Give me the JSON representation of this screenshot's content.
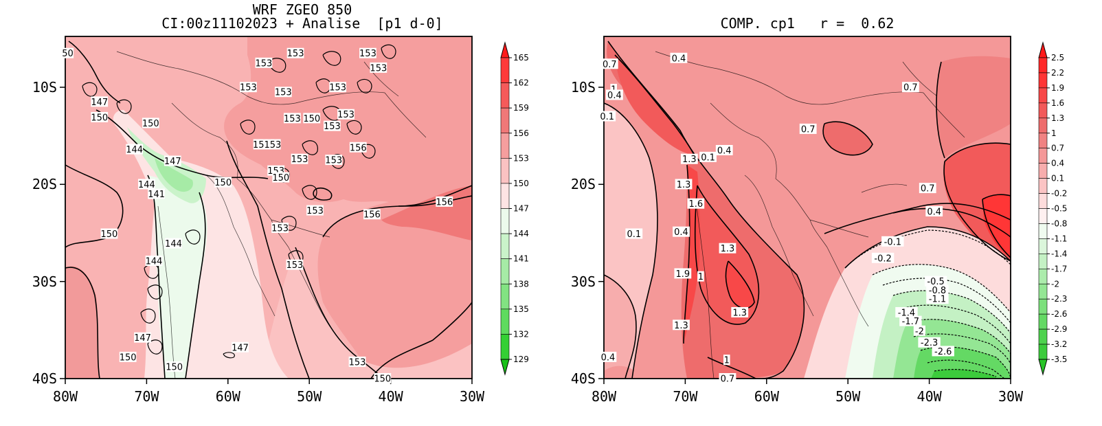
{
  "panels": [
    {
      "title_line1": "WRF ZGEO 850",
      "title_line2": "CI:00z11102023 + Analise  [p1 d-0]",
      "x_ticks": [
        "80W",
        "70W",
        "60W",
        "50W",
        "40W",
        "30W"
      ],
      "y_ticks": [
        "10S",
        "20S",
        "30S",
        "40S"
      ],
      "colorbar": {
        "levels": [
          "165",
          "162",
          "159",
          "156",
          "153",
          "150",
          "147",
          "144",
          "141",
          "138",
          "135",
          "132",
          "129"
        ],
        "colors": [
          "#ff1a1a",
          "#ff3a3a",
          "#f55a5a",
          "#f07878",
          "#f59e9e",
          "#fbc2c2",
          "#fde4e4",
          "#ecfaec",
          "#caf3ca",
          "#a6eba6",
          "#82e382",
          "#5edb5e",
          "#34d034",
          "#18c018"
        ]
      },
      "contour_labels": [
        {
          "text": "50",
          "lon": -79.7,
          "lat": -6.5
        },
        {
          "text": "153",
          "lon": -55.6,
          "lat": -7.5
        },
        {
          "text": "153",
          "lon": -51.7,
          "lat": -6.5
        },
        {
          "text": "153",
          "lon": -42.8,
          "lat": -6.5
        },
        {
          "text": "153",
          "lon": -41.5,
          "lat": -8.0
        },
        {
          "text": "153",
          "lon": -57.5,
          "lat": -10.0
        },
        {
          "text": "153",
          "lon": -53.2,
          "lat": -10.5
        },
        {
          "text": "153",
          "lon": -46.5,
          "lat": -10.0
        },
        {
          "text": "147",
          "lon": -75.8,
          "lat": -11.5
        },
        {
          "text": "150",
          "lon": -75.8,
          "lat": -13.1
        },
        {
          "text": "153",
          "lon": -52.1,
          "lat": -13.2
        },
        {
          "text": "150",
          "lon": -49.7,
          "lat": -13.2
        },
        {
          "text": "153",
          "lon": -45.5,
          "lat": -12.8
        },
        {
          "text": "150",
          "lon": -69.5,
          "lat": -13.7
        },
        {
          "text": "153",
          "lon": -47.2,
          "lat": -14.0
        },
        {
          "text": "144",
          "lon": -71.5,
          "lat": -16.4
        },
        {
          "text": "15153",
          "lon": -55.2,
          "lat": -15.9
        },
        {
          "text": "156",
          "lon": -44.0,
          "lat": -16.2
        },
        {
          "text": "147",
          "lon": -66.8,
          "lat": -17.6
        },
        {
          "text": "153",
          "lon": -51.2,
          "lat": -17.4
        },
        {
          "text": "153",
          "lon": -47.0,
          "lat": -17.5
        },
        {
          "text": "153",
          "lon": -54.1,
          "lat": -18.6
        },
        {
          "text": "150",
          "lon": -53.5,
          "lat": -19.3
        },
        {
          "text": "150",
          "lon": -60.6,
          "lat": -19.8
        },
        {
          "text": "144",
          "lon": -70.0,
          "lat": -20.0
        },
        {
          "text": "141",
          "lon": -68.8,
          "lat": -21.0
        },
        {
          "text": "156",
          "lon": -33.4,
          "lat": -21.8
        },
        {
          "text": "153",
          "lon": -49.3,
          "lat": -22.7
        },
        {
          "text": "156",
          "lon": -42.3,
          "lat": -23.1
        },
        {
          "text": "150",
          "lon": -74.6,
          "lat": -25.1
        },
        {
          "text": "153",
          "lon": -53.6,
          "lat": -24.5
        },
        {
          "text": "144",
          "lon": -66.7,
          "lat": -26.1
        },
        {
          "text": "144",
          "lon": -69.1,
          "lat": -27.9
        },
        {
          "text": "153",
          "lon": -51.8,
          "lat": -28.3
        },
        {
          "text": "147",
          "lon": -70.5,
          "lat": -35.8
        },
        {
          "text": "147",
          "lon": -58.5,
          "lat": -36.8
        },
        {
          "text": "150",
          "lon": -72.3,
          "lat": -37.8
        },
        {
          "text": "150",
          "lon": -66.6,
          "lat": -38.8
        },
        {
          "text": "153",
          "lon": -44.1,
          "lat": -38.3
        },
        {
          "text": "150",
          "lon": -41.0,
          "lat": -40.0
        }
      ]
    },
    {
      "title": "COMP. cp1   r =  0.62",
      "x_ticks": [
        "80W",
        "70W",
        "60W",
        "50W",
        "40W",
        "30W"
      ],
      "y_ticks": [
        "10S",
        "20S",
        "30S",
        "40S"
      ],
      "colorbar": {
        "levels": [
          "2.5",
          "2.2",
          "1.9",
          "1.6",
          "1.3",
          "1",
          "0.7",
          "0.4",
          "0.1",
          "-0.2",
          "-0.5",
          "-0.8",
          "-1.1",
          "-1.4",
          "-1.7",
          "-2",
          "-2.3",
          "-2.6",
          "-2.9",
          "-3.2",
          "-3.5"
        ],
        "colors": [
          "#ff1a1a",
          "#ff2828",
          "#ff3636",
          "#f84848",
          "#f25a5a",
          "#ee6c6c",
          "#f08282",
          "#f49898",
          "#f7adad",
          "#fbc4c4",
          "#fddcdc",
          "#fef0f0",
          "#f0fbf0",
          "#dbf6db",
          "#c4f1c4",
          "#acecac",
          "#94e694",
          "#7ce07c",
          "#64d964",
          "#4ed24e",
          "#3ccb3c",
          "#28c428"
        ]
      },
      "contour_labels": [
        {
          "text": "0.4",
          "lon": -70.8,
          "lat": -7.0
        },
        {
          "text": "0.7",
          "lon": -79.3,
          "lat": -7.6
        },
        {
          "text": "1",
          "lon": -78.8,
          "lat": -10.2
        },
        {
          "text": "0.4",
          "lon": -78.7,
          "lat": -10.8
        },
        {
          "text": "0.7",
          "lon": -42.3,
          "lat": -10.0
        },
        {
          "text": "0.1",
          "lon": -79.6,
          "lat": -13.0
        },
        {
          "text": "0.7",
          "lon": -54.9,
          "lat": -14.3
        },
        {
          "text": "0.4",
          "lon": -65.2,
          "lat": -16.5
        },
        {
          "text": "1.3",
          "lon": -69.5,
          "lat": -17.4
        },
        {
          "text": "0.1",
          "lon": -67.2,
          "lat": -17.2
        },
        {
          "text": "1.3",
          "lon": -70.2,
          "lat": -20.0
        },
        {
          "text": "0.7",
          "lon": -40.2,
          "lat": -20.4
        },
        {
          "text": "1.6",
          "lon": -68.7,
          "lat": -22.0
        },
        {
          "text": "0.4",
          "lon": -39.4,
          "lat": -22.8
        },
        {
          "text": "0.1",
          "lon": -76.3,
          "lat": -25.1
        },
        {
          "text": "0.4",
          "lon": -70.5,
          "lat": -24.9
        },
        {
          "text": "-0.1",
          "lon": -44.5,
          "lat": -25.9
        },
        {
          "text": "1.3",
          "lon": -64.8,
          "lat": -26.6
        },
        {
          "text": "-0.2",
          "lon": -45.7,
          "lat": -27.6
        },
        {
          "text": "1.9",
          "lon": -70.3,
          "lat": -29.2
        },
        {
          "text": "1",
          "lon": -68.1,
          "lat": -29.5
        },
        {
          "text": "-0.5",
          "lon": -39.2,
          "lat": -30.0
        },
        {
          "text": "-0.8",
          "lon": -39.0,
          "lat": -30.9
        },
        {
          "text": "-1.1",
          "lon": -39.0,
          "lat": -31.8
        },
        {
          "text": "1.3",
          "lon": -63.3,
          "lat": -33.2
        },
        {
          "text": "-1.4",
          "lon": -42.8,
          "lat": -33.2
        },
        {
          "text": "-1.7",
          "lon": -42.3,
          "lat": -34.1
        },
        {
          "text": "-2",
          "lon": -41.2,
          "lat": -35.1
        },
        {
          "text": "-2.3",
          "lon": -40.0,
          "lat": -36.3
        },
        {
          "text": "1.3",
          "lon": -70.5,
          "lat": -34.5
        },
        {
          "text": "-2.6",
          "lon": -38.3,
          "lat": -37.2
        },
        {
          "text": "1",
          "lon": -64.9,
          "lat": -38.1
        },
        {
          "text": "0.4",
          "lon": -79.5,
          "lat": -37.8
        },
        {
          "text": "0.7",
          "lon": -64.8,
          "lat": -40.0
        }
      ]
    }
  ]
}
